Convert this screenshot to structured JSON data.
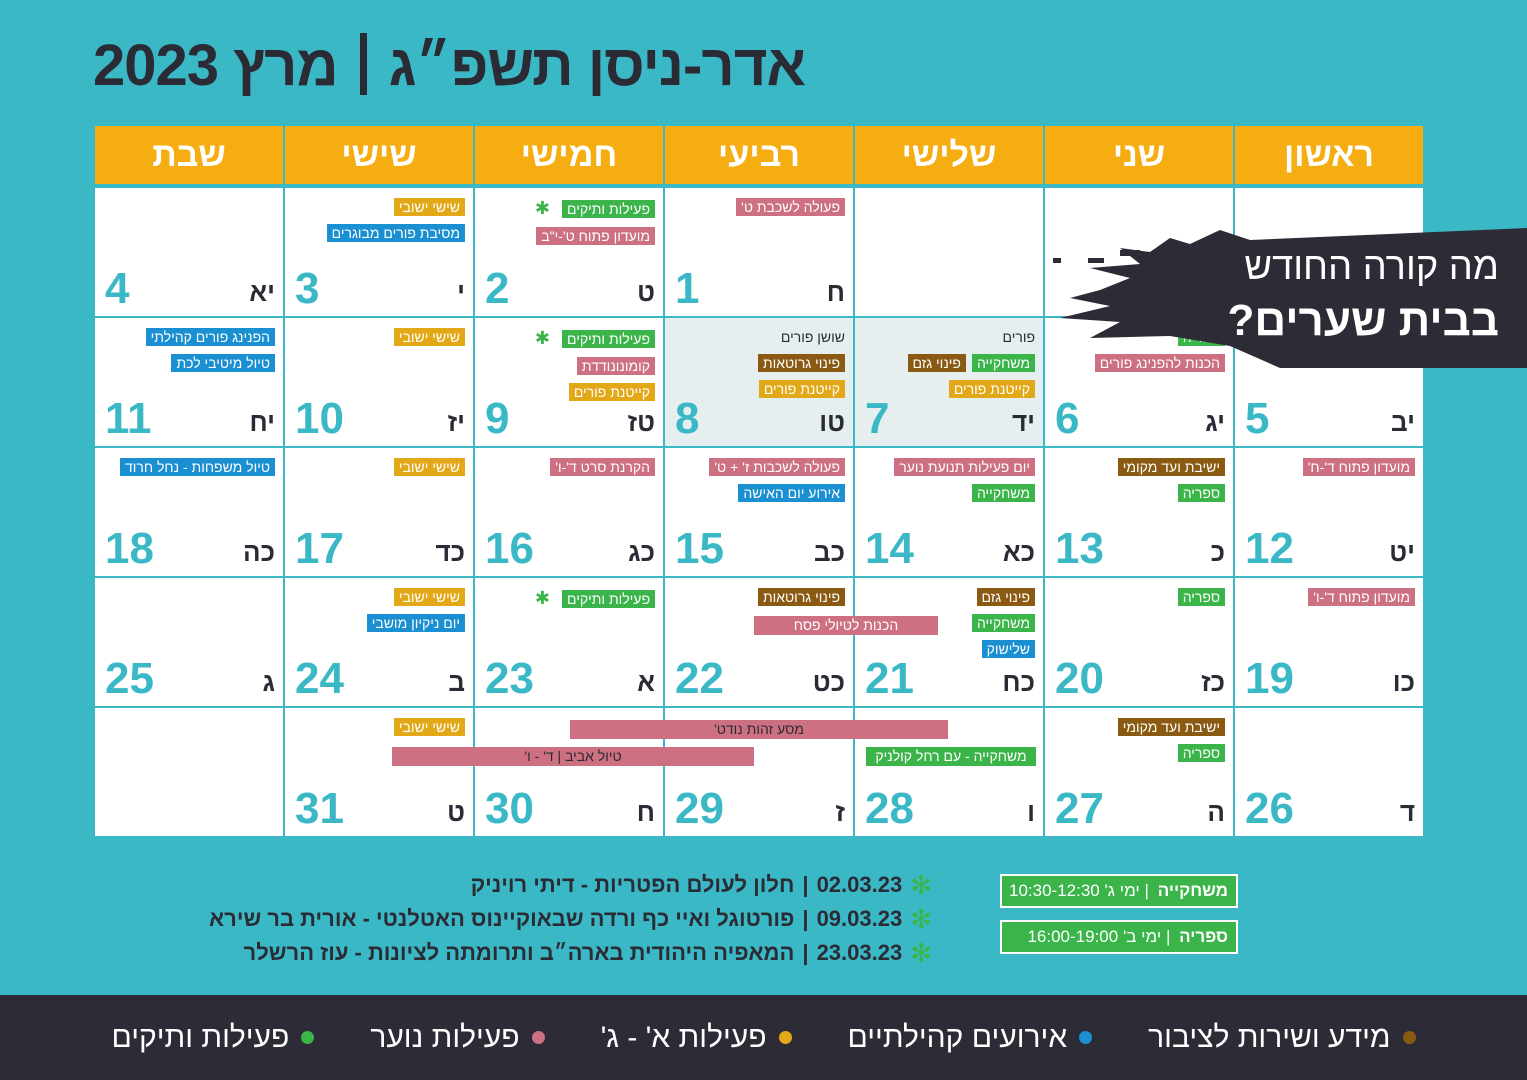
{
  "title": {
    "main": "מרץ 2023",
    "sub": "אדר-ניסן תשפ״ג"
  },
  "colors": {
    "background": "#3ab8c6",
    "header": "#f5ad11",
    "info": "#8a5a12",
    "public": "#1a8fd1",
    "community": "#e3a817",
    "youth": "#cc7082",
    "seniors": "#3bb54a",
    "dark": "#2d2b36"
  },
  "weekdays": [
    "ראשון",
    "שני",
    "שלישי",
    "רביעי",
    "חמישי",
    "שישי",
    "שבת"
  ],
  "weeks": [
    [
      {
        "num": "",
        "heb": "",
        "events": []
      },
      {
        "num": "",
        "heb": "",
        "events": []
      },
      {
        "num": "",
        "heb": "",
        "events": []
      },
      {
        "num": "1",
        "heb": "ח",
        "events": [
          {
            "text": "פעולה לשכבת ט'",
            "cat": "youth"
          }
        ]
      },
      {
        "num": "2",
        "heb": "ט",
        "events": [
          {
            "text": "פעילות ותיקים",
            "cat": "seniors",
            "star": true
          },
          {
            "text": "מועדון פתוח ט'-י\"ב",
            "cat": "youth"
          }
        ]
      },
      {
        "num": "3",
        "heb": "י",
        "events": [
          {
            "text": "שישי ישובי",
            "cat": "community"
          },
          {
            "text": "מסיבת פורים מבוגרים",
            "cat": "public"
          }
        ]
      },
      {
        "num": "4",
        "heb": "יא",
        "events": []
      }
    ],
    [
      {
        "num": "5",
        "heb": "יב",
        "events": []
      },
      {
        "num": "6",
        "heb": "יג",
        "events": [
          {
            "text": "ספריה",
            "cat": "seniors"
          },
          {
            "text": "הכנות להפנינג פורים",
            "cat": "youth"
          }
        ]
      },
      {
        "num": "7",
        "heb": "יד",
        "shade": true,
        "events": [
          {
            "text": "פורים",
            "cat": "plain"
          },
          {
            "text": "משחקייה",
            "cat": "seniors",
            "pair": "פינוי גזם",
            "paircat": "info"
          },
          {
            "text": "קייטנת פורים",
            "cat": "community"
          }
        ]
      },
      {
        "num": "8",
        "heb": "טו",
        "shade": true,
        "events": [
          {
            "text": "שושן פורים",
            "cat": "plain"
          },
          {
            "text": "פינוי גרוטאות",
            "cat": "info"
          },
          {
            "text": "קייטנת פורים",
            "cat": "community"
          }
        ]
      },
      {
        "num": "9",
        "heb": "טז",
        "events": [
          {
            "text": "פעילות ותיקים",
            "cat": "seniors",
            "star": true
          },
          {
            "text": "קומונונודדת",
            "cat": "youth"
          },
          {
            "text": "קייטנת פורים",
            "cat": "community"
          }
        ]
      },
      {
        "num": "10",
        "heb": "יז",
        "events": [
          {
            "text": "שישי ישובי",
            "cat": "community"
          }
        ]
      },
      {
        "num": "11",
        "heb": "יח",
        "events": [
          {
            "text": "הפנינג פורים קהילתי",
            "cat": "public"
          },
          {
            "text": "טיול מיטיבי לכת",
            "cat": "public"
          }
        ]
      }
    ],
    [
      {
        "num": "12",
        "heb": "יט",
        "events": [
          {
            "text": "מועדון פתוח ד'-ח'",
            "cat": "youth"
          }
        ]
      },
      {
        "num": "13",
        "heb": "כ",
        "events": [
          {
            "text": "ישיבת ועד מקומי",
            "cat": "info"
          },
          {
            "text": "ספריה",
            "cat": "seniors"
          }
        ]
      },
      {
        "num": "14",
        "heb": "כא",
        "events": [
          {
            "text": "יום פעילות תנועת נוער",
            "cat": "youth"
          },
          {
            "text": "משחקייה",
            "cat": "seniors"
          }
        ]
      },
      {
        "num": "15",
        "heb": "כב",
        "events": [
          {
            "text": "פעולה לשכבות ז' + ט'",
            "cat": "youth"
          },
          {
            "text": "אירוע יום האישה",
            "cat": "public"
          }
        ]
      },
      {
        "num": "16",
        "heb": "כג",
        "events": [
          {
            "text": "הקרנת סרט ד'-ו'",
            "cat": "youth"
          }
        ]
      },
      {
        "num": "17",
        "heb": "כד",
        "events": [
          {
            "text": "שישי ישובי",
            "cat": "community"
          }
        ]
      },
      {
        "num": "18",
        "heb": "כה",
        "events": [
          {
            "text": "טיול משפחות - נחל חרוד",
            "cat": "public"
          }
        ]
      }
    ],
    [
      {
        "num": "19",
        "heb": "כו",
        "events": [
          {
            "text": "מועדון פתוח ד'-ו'",
            "cat": "youth"
          }
        ]
      },
      {
        "num": "20",
        "heb": "כז",
        "events": [
          {
            "text": "ספריה",
            "cat": "seniors"
          }
        ]
      },
      {
        "num": "21",
        "heb": "כח",
        "events": [
          {
            "text": "פינוי גזם",
            "cat": "info"
          },
          {
            "text": "משחקייה",
            "cat": "seniors"
          },
          {
            "text": "שלישוק",
            "cat": "public"
          }
        ]
      },
      {
        "num": "22",
        "heb": "כט",
        "events": [
          {
            "text": "פינוי גרוטאות",
            "cat": "info"
          }
        ]
      },
      {
        "num": "23",
        "heb": "א",
        "events": [
          {
            "text": "פעילות ותיקים",
            "cat": "seniors",
            "star": true
          }
        ]
      },
      {
        "num": "24",
        "heb": "ב",
        "events": [
          {
            "text": "שישי ישובי",
            "cat": "community"
          },
          {
            "text": "יום ניקיון מושבי",
            "cat": "public"
          }
        ]
      },
      {
        "num": "25",
        "heb": "ג",
        "events": []
      }
    ],
    [
      {
        "num": "26",
        "heb": "ד",
        "events": []
      },
      {
        "num": "27",
        "heb": "ה",
        "events": [
          {
            "text": "ישיבת ועד מקומי",
            "cat": "info"
          },
          {
            "text": "ספריה",
            "cat": "seniors"
          }
        ]
      },
      {
        "num": "28",
        "heb": "ו",
        "events": []
      },
      {
        "num": "29",
        "heb": "ז",
        "events": []
      },
      {
        "num": "30",
        "heb": "ח",
        "events": []
      },
      {
        "num": "31",
        "heb": "ט",
        "events": [
          {
            "text": "שישי ישובי",
            "cat": "community"
          }
        ]
      },
      {
        "num": "",
        "heb": "",
        "events": []
      }
    ]
  ],
  "span_events": {
    "pesach_prep": "הכנות לטיולי פסח",
    "identity_trip": "מסע זהות נודט'",
    "telaviv_trip": "טיול אביב | ד' - ו'",
    "playroom_rachel": "משחקייה - עם רחל קולניק"
  },
  "banner": {
    "line1": "מה קורה החודש",
    "line2": "בבית שערים?"
  },
  "lectures": [
    {
      "date": "02.03.23",
      "text": "חלון לעולם הפטריות - דיתי רויניק"
    },
    {
      "date": "09.03.23",
      "text": "פורטוגל ואיי כף ורדה שבאוקיינוס האטלנטי - אורית בר שירא"
    },
    {
      "date": "23.03.23",
      "text": "המאפיה היהודית בארה״ב ותרומתה לציונות - עוז הרשלר"
    }
  ],
  "hours": [
    {
      "name": "משחקייה",
      "day": "ימי ג'",
      "time": "10:30-12:30"
    },
    {
      "name": "ספריה",
      "day": "ימי ב'",
      "time": "16:00-19:00"
    }
  ],
  "legend": [
    {
      "label": "מידע ושירות לציבור",
      "color": "#8a5a12"
    },
    {
      "label": "אירועים קהילתיים",
      "color": "#1a8fd1"
    },
    {
      "label": "פעילות א' - ג'",
      "color": "#e3a817"
    },
    {
      "label": "פעילות נוער",
      "color": "#cc7082"
    },
    {
      "label": "פעילות ותיקים",
      "color": "#3bb54a"
    }
  ]
}
